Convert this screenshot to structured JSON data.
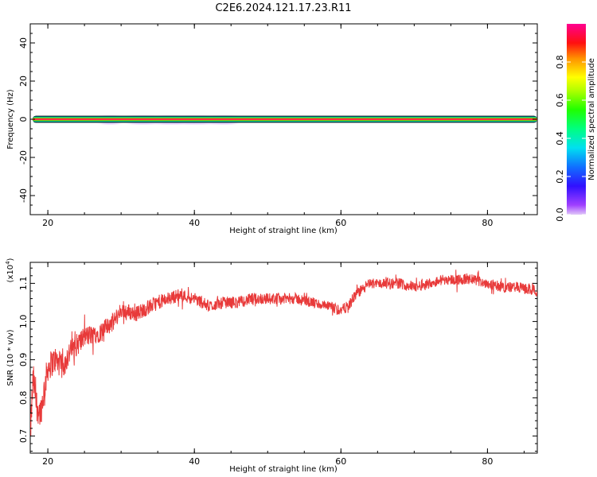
{
  "title": "C2E6.2024.121.17.23.R11",
  "chart_data": [
    {
      "type": "heatmap",
      "xlabel": "Height of straight line (km)",
      "ylabel": "Frequency (Hz)",
      "xlim": [
        17.6,
        86.8
      ],
      "ylim": [
        -50,
        50
      ],
      "x_ticks": [
        20,
        40,
        60,
        80
      ],
      "y_ticks": [
        40,
        20,
        0,
        -20,
        -40
      ],
      "band": {
        "x_start": 17.9,
        "x_end": 86.8,
        "half_width_hz": 1.6,
        "center_hz": 0
      },
      "faint_blobs": [
        {
          "x": 28.5,
          "width_km": 2.0
        },
        {
          "x": 33.0,
          "width_km": 3.5
        },
        {
          "x": 36.5,
          "width_km": 3.0
        },
        {
          "x": 40.0,
          "width_km": 5.0
        },
        {
          "x": 44.0,
          "width_km": 3.0
        }
      ],
      "colorbar": {
        "label": "Normalized spectral amplitude",
        "ticks": [
          0.0,
          0.2,
          0.4,
          0.6,
          0.8
        ],
        "range": [
          0,
          1
        ]
      }
    },
    {
      "type": "line",
      "xlabel": "Height of straight line (km)",
      "ylabel": "SNR (10 * v/v)",
      "scale_label": "(x10",
      "scale_exp": "4",
      "xlim": [
        17.6,
        86.8
      ],
      "ylim": [
        0.655,
        1.155
      ],
      "x_ticks": [
        20,
        40,
        60,
        80
      ],
      "y_ticks": [
        0.7,
        0.8,
        0.9,
        1.0,
        1.1
      ],
      "series": [
        {
          "color": "#e83a3a",
          "trend": {
            "x": [
              17.6,
              18.0,
              18.5,
              19.0,
              20.0,
              21.0,
              22.0,
              23.0,
              24.0,
              25.0,
              27.0,
              29.0,
              30.0,
              32.0,
              35.0,
              38.0,
              40.0,
              42.0,
              44.0,
              46.0,
              48.0,
              50.0,
              52.0,
              54.0,
              56.0,
              58.0,
              60.0,
              61.0,
              62.0,
              64.0,
              66.0,
              68.0,
              70.0,
              72.0,
              74.0,
              76.0,
              78.0,
              80.0,
              82.0,
              84.0,
              86.8
            ],
            "y": [
              0.7,
              0.85,
              0.78,
              0.76,
              0.88,
              0.9,
              0.88,
              0.92,
              0.94,
              0.96,
              0.97,
              1.0,
              1.03,
              1.02,
              1.05,
              1.07,
              1.06,
              1.04,
              1.05,
              1.05,
              1.06,
              1.06,
              1.06,
              1.06,
              1.05,
              1.04,
              1.03,
              1.04,
              1.07,
              1.1,
              1.1,
              1.1,
              1.09,
              1.1,
              1.11,
              1.11,
              1.11,
              1.1,
              1.09,
              1.09,
              1.08
            ]
          },
          "noise_amp": [
            {
              "x": 17.6,
              "a": 0.045
            },
            {
              "x": 21.0,
              "a": 0.035
            },
            {
              "x": 25.0,
              "a": 0.028
            },
            {
              "x": 30.0,
              "a": 0.022
            },
            {
              "x": 40.0,
              "a": 0.016
            },
            {
              "x": 60.0,
              "a": 0.014
            },
            {
              "x": 86.8,
              "a": 0.014
            }
          ]
        }
      ]
    }
  ]
}
